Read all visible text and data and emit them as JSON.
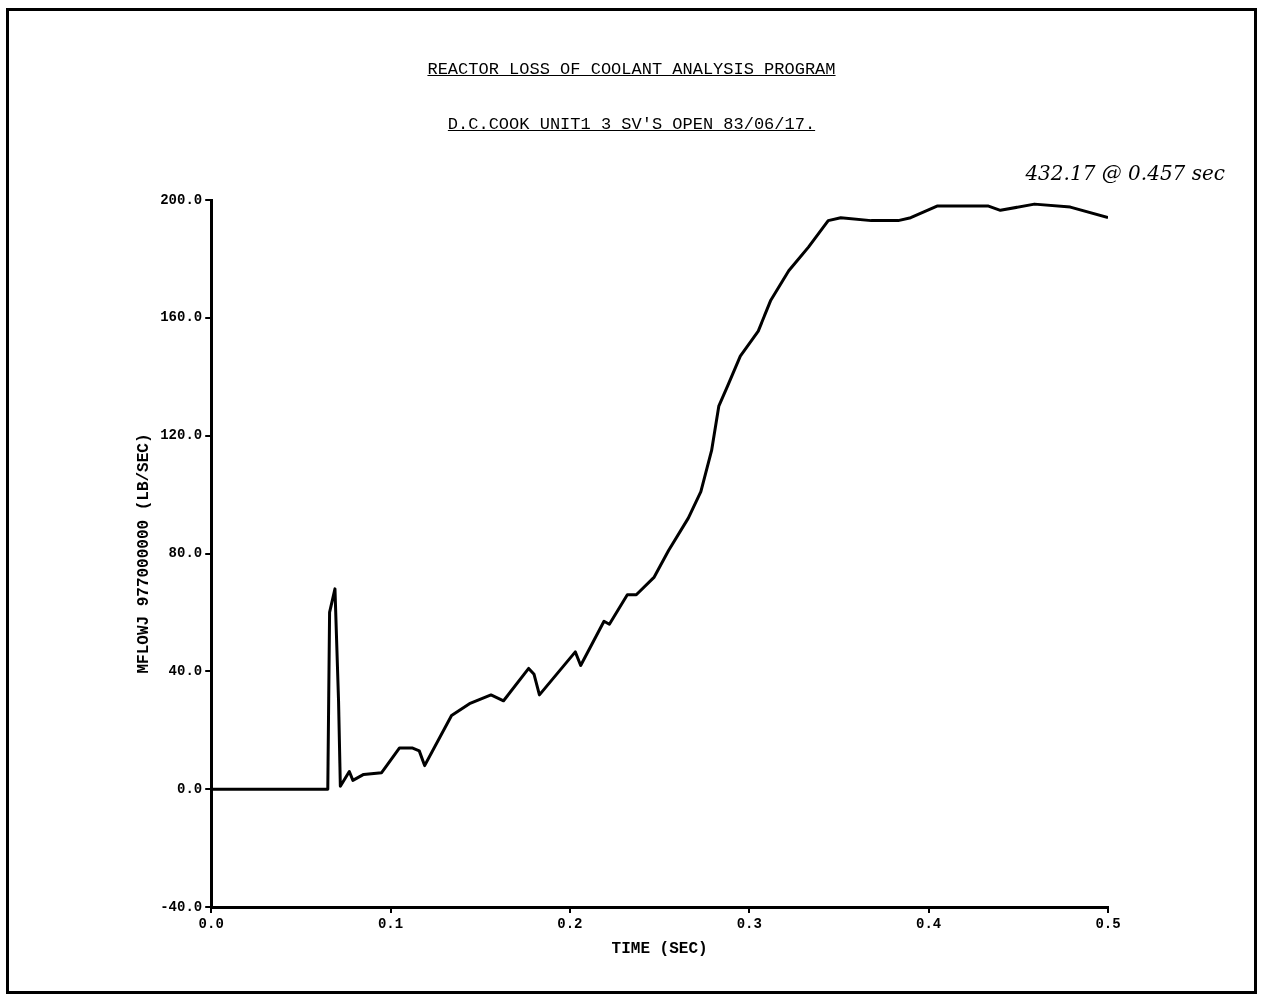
{
  "chart_data": {
    "type": "line",
    "title": "REACTOR LOSS OF COOLANT ANALYSIS PROGRAM",
    "subtitle": "D.C.COOK UNIT1 3 SV'S OPEN 83/06/17.",
    "xlabel": "TIME (SEC)",
    "ylabel": "MFLOWJ 977000000 (LB/SEC)",
    "annotations": [
      "432.17 @ 0.457 sec"
    ],
    "xlim": [
      0,
      0.5
    ],
    "xticks": [
      {
        "value": 0,
        "label": "0.0"
      },
      0.1,
      0.2,
      0.3,
      0.4,
      0.5
    ],
    "ylim": [
      -40,
      200
    ],
    "yticks": [
      {
        "value": -40,
        "label": "-40.0"
      },
      {
        "value": 0,
        "label": "0.0"
      },
      {
        "value": 40,
        "label": "40.0"
      },
      {
        "value": 80,
        "label": "80.0"
      },
      {
        "value": 120,
        "label": "120.0"
      },
      {
        "value": 160,
        "label": "160.0"
      },
      {
        "value": 200,
        "label": "200.0"
      }
    ],
    "grid": false,
    "legend": false,
    "marker": "none",
    "line_style": "solid",
    "series": [
      {
        "color": "#000000",
        "x": [
          0,
          0.03,
          0.065,
          0.066,
          0.069,
          0.071,
          0.072,
          0.077,
          0.079,
          0.085,
          0.095,
          0.105,
          0.112,
          0.116,
          0.119,
          0.134,
          0.144,
          0.156,
          0.163,
          0.177,
          0.18,
          0.183,
          0.203,
          0.206,
          0.219,
          0.222,
          0.232,
          0.237,
          0.247,
          0.255,
          0.266,
          0.273,
          0.279,
          0.283,
          0.288,
          0.295,
          0.305,
          0.312,
          0.322,
          0.333,
          0.344,
          0.351,
          0.368,
          0.383,
          0.39,
          0.405,
          0.433,
          0.44,
          0.459,
          0.479,
          0.5
        ],
        "values": [
          0,
          0,
          0,
          60,
          68,
          30,
          1,
          6,
          3,
          5,
          5.6,
          14,
          14,
          13,
          8,
          25,
          29,
          32,
          30,
          41,
          39,
          32,
          46.6,
          42,
          57,
          56,
          66,
          66,
          72,
          81,
          92,
          101,
          115,
          130,
          137,
          147,
          155.5,
          166,
          176,
          184,
          193,
          194,
          193,
          193,
          194,
          198,
          198,
          196.5,
          198.6,
          197.6,
          194
        ]
      }
    ]
  }
}
